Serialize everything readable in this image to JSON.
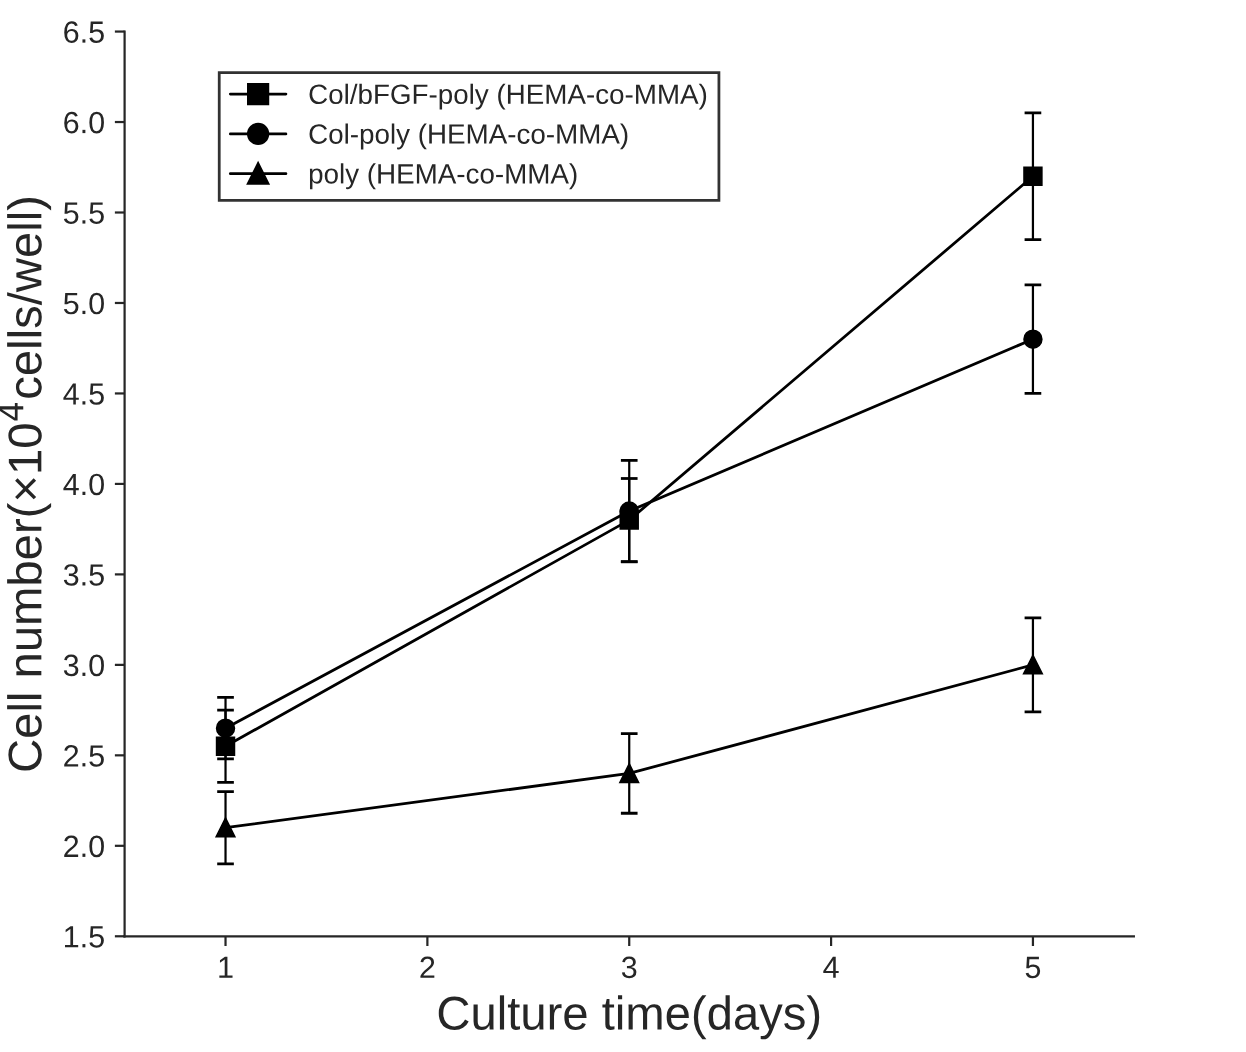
{
  "chart_data": {
    "type": "line",
    "xlabel": "Culture time(days)",
    "ylabel": "Cell number(×10$^{4}$cells/well)",
    "x": [
      1,
      3,
      5
    ],
    "series": [
      {
        "name": "Col/bFGF-poly (HEMA-co-MMA)",
        "color": "#000000",
        "marker": "square",
        "values": [
          2.55,
          3.8,
          5.7
        ],
        "errors": [
          0.2,
          0.23,
          0.35
        ]
      },
      {
        "name": "Col-poly (HEMA-co-MMA)",
        "color": "#000000",
        "marker": "circle",
        "values": [
          2.65,
          3.85,
          4.8
        ],
        "errors": [
          0.17,
          0.28,
          0.3
        ]
      },
      {
        "name": "poly (HEMA-co-MMA)",
        "color": "#000000",
        "marker": "triangle",
        "values": [
          2.1,
          2.4,
          3.0
        ],
        "errors": [
          0.2,
          0.22,
          0.26
        ]
      }
    ],
    "xlim": [
      0.5,
      5.5
    ],
    "xticks": [
      1,
      2,
      3,
      4,
      5
    ],
    "ylim": [
      1.5,
      6.5
    ],
    "yticks": [
      {
        "value": 1.5,
        "label": "1.5"
      },
      {
        "value": 2.0,
        "label": "2.0"
      },
      {
        "value": 2.5,
        "label": "2.5"
      },
      {
        "value": 3.0,
        "label": "3.0"
      },
      {
        "value": 3.5,
        "label": "3.5"
      },
      {
        "value": 4.0,
        "label": "4.0"
      },
      {
        "value": 4.5,
        "label": "4.5"
      },
      {
        "value": 5.0,
        "label": "5.0"
      },
      {
        "value": 5.5,
        "label": "5.5"
      },
      {
        "value": 6.0,
        "label": "6.0"
      },
      {
        "value": 6.5,
        "label": "6.5"
      }
    ],
    "legend": "top left",
    "grid": false
  }
}
